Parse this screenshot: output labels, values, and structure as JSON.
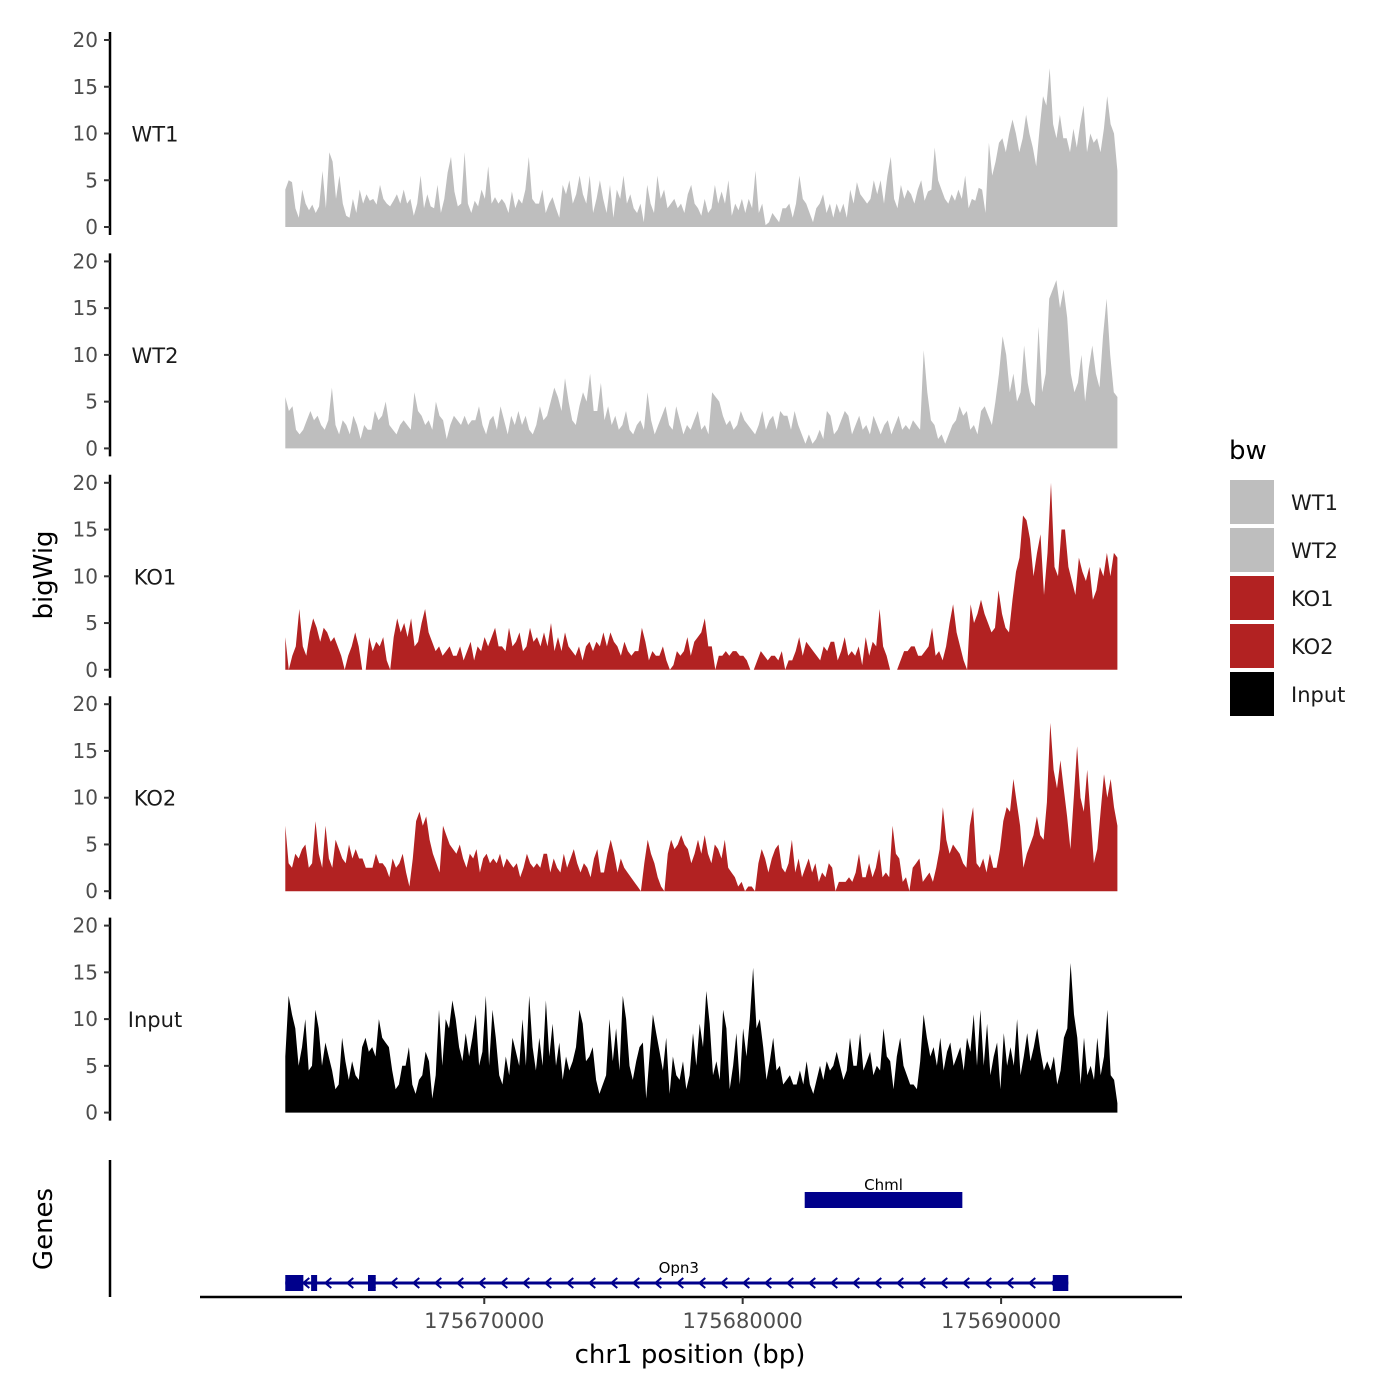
{
  "chart_data": {
    "type": "area",
    "ylabel": "bigWig",
    "xlabel": "chr1 position (bp)",
    "xlim": [
      175659000,
      175697000
    ],
    "ylim": [
      0,
      20
    ],
    "y_ticks": [
      0,
      5,
      10,
      15,
      20
    ],
    "x_ticks": [
      175670000,
      175680000,
      175690000
    ],
    "x_tick_labels": [
      "175670000",
      "175680000",
      "175690000"
    ],
    "track_range": [
      175662300,
      175694500
    ],
    "legend": {
      "title": "bw",
      "items": [
        {
          "label": "WT1",
          "color": "#bebebe"
        },
        {
          "label": "WT2",
          "color": "#bebebe"
        },
        {
          "label": "KO1",
          "color": "#b22222"
        },
        {
          "label": "KO2",
          "color": "#b22222"
        },
        {
          "label": "Input",
          "color": "#000000"
        }
      ]
    },
    "series": [
      {
        "name": "WT1",
        "color": "#bebebe",
        "values": [
          4,
          5,
          4.8,
          2,
          1,
          4,
          2.5,
          1.8,
          2.4,
          1.5,
          2.2,
          6,
          2,
          8,
          7,
          3,
          5.5,
          2.5,
          1.2,
          1,
          3,
          1.5,
          4,
          2.5,
          3.5,
          2.8,
          3,
          2.4,
          4.5,
          3,
          2.5,
          2.2,
          2.8,
          3.5,
          2.5,
          4,
          2.5,
          3,
          1.2,
          2.5,
          5.5,
          2,
          3.5,
          2.2,
          2,
          4.5,
          1.5,
          3,
          5.8,
          7.5,
          3.8,
          2.2,
          2.5,
          8,
          2.5,
          1.5,
          2.8,
          2.2,
          4,
          3,
          6.5,
          2.5,
          3.2,
          2.5,
          3,
          2.5,
          1.5,
          3.8,
          2,
          3,
          2.5,
          4,
          7.5,
          3,
          2.5,
          2.5,
          4,
          1.5,
          2.5,
          3.2,
          2,
          1,
          4.5,
          3.5,
          5,
          2.5,
          3.5,
          5.5,
          3.5,
          2.5,
          5.5,
          1.5,
          3,
          5,
          3,
          1.5,
          4.5,
          1,
          4,
          3,
          5.5,
          2.5,
          3.5,
          2,
          1.5,
          2.5,
          0.5,
          4.5,
          2.5,
          1.5,
          5.5,
          3,
          4,
          2,
          2.5,
          3,
          2,
          2.5,
          1.5,
          3.5,
          4.5,
          2.5,
          2,
          1.2,
          3,
          1.5,
          2,
          4.5,
          2.5,
          3.8,
          2.5,
          5,
          1.2,
          2.5,
          1.8,
          3,
          1.5,
          3,
          2,
          6,
          1.5,
          2.5,
          0.2,
          0.5,
          1.5,
          1,
          0.5,
          2,
          2,
          2.5,
          1,
          2.5,
          5.5,
          3,
          2.5,
          1.5,
          0.5,
          2,
          2.5,
          3.5,
          1.5,
          2.5,
          1,
          2.5,
          1.5,
          2.5,
          1,
          4,
          2.5,
          4.8,
          3.5,
          3,
          2.5,
          3,
          5,
          3.5,
          5,
          2.5,
          5.5,
          7.5,
          3,
          2,
          4.5,
          3,
          4,
          3.5,
          2.5,
          4,
          5,
          2.8,
          3.8,
          4,
          8.5,
          5,
          4,
          3,
          2.5,
          3.5,
          2.8,
          4,
          3,
          5.5,
          2,
          3,
          2.8,
          4.2,
          4,
          1.5,
          9,
          5.5,
          7,
          9,
          9.5,
          8,
          10,
          11.5,
          10,
          8,
          9.5,
          12,
          10,
          8.5,
          6.5,
          10.5,
          14,
          13,
          17,
          11,
          9.5,
          12,
          9.5,
          9.5,
          8,
          10.5,
          8.5,
          11,
          13,
          8,
          10,
          9,
          9.5,
          8,
          10.5,
          14,
          11,
          10,
          6
        ]
      },
      {
        "name": "WT2",
        "color": "#bebebe",
        "values": [
          5.5,
          4,
          4.5,
          2,
          1.5,
          2,
          3,
          4,
          3,
          3.5,
          2.5,
          2,
          3,
          6.5,
          2.5,
          1.5,
          3,
          2.5,
          1.5,
          3.5,
          2.5,
          1,
          2.5,
          2,
          2,
          4,
          3,
          3.5,
          5,
          2.5,
          2,
          1.5,
          2.5,
          3,
          2.5,
          2,
          6,
          4,
          3.5,
          2.5,
          3,
          2,
          5,
          3.5,
          3,
          1,
          2.5,
          3.5,
          3,
          2.5,
          3.5,
          2.5,
          3,
          3,
          4.5,
          2.5,
          1.5,
          3,
          3.5,
          2,
          4.5,
          3,
          1.5,
          3.5,
          2.5,
          4,
          2.5,
          3.5,
          2,
          1.5,
          2.5,
          4.5,
          3,
          3.5,
          5,
          6.5,
          5.5,
          4,
          7.5,
          5,
          3,
          2.5,
          4.5,
          6,
          5,
          8,
          4,
          4,
          7,
          3,
          4.5,
          2.5,
          3.5,
          2,
          2.5,
          4,
          2,
          1.5,
          2.5,
          3,
          2,
          6,
          3,
          1.5,
          2.5,
          3.5,
          4.5,
          2.5,
          2,
          4.5,
          3,
          1.5,
          2.5,
          2,
          3,
          4,
          2,
          2.5,
          1.5,
          6,
          5.5,
          5,
          3.5,
          2.5,
          3,
          2,
          2.5,
          4,
          3,
          2.5,
          2,
          1.5,
          2.5,
          4,
          2,
          3,
          3.5,
          2,
          4,
          3.5,
          3.5,
          2,
          4,
          2.5,
          1.5,
          0.5,
          1.5,
          0.5,
          1,
          2,
          1,
          4,
          3.5,
          1.5,
          2,
          3,
          4,
          3.5,
          1.5,
          2.5,
          3.5,
          2,
          2.5,
          1.5,
          3.5,
          2.5,
          1.5,
          2.5,
          3,
          1.5,
          2.5,
          3.5,
          2,
          2.5,
          2,
          3,
          2.5,
          2,
          10.5,
          6,
          3,
          2.5,
          1,
          1.5,
          0.5,
          1.5,
          2.5,
          3,
          4.5,
          3.5,
          4,
          2,
          2.5,
          1.5,
          4,
          4.5,
          3.5,
          2.5,
          5,
          8,
          12,
          10,
          6,
          8,
          5,
          6,
          11,
          7,
          5,
          4.5,
          13,
          6,
          8,
          16,
          17,
          18,
          15,
          17,
          14,
          8,
          6,
          7,
          10,
          5,
          8.5,
          11,
          8,
          6.5,
          12,
          16,
          10,
          6,
          5.5
        ]
      },
      {
        "name": "KO1",
        "color": "#b22222",
        "values": [
          3.5,
          0,
          1.5,
          2.5,
          6.5,
          2.5,
          1.5,
          4,
          5.5,
          4.5,
          3,
          4.5,
          4,
          3,
          3.5,
          2.5,
          1.5,
          0,
          1.5,
          2.5,
          4,
          2.5,
          0,
          0,
          3.5,
          2,
          3,
          2.5,
          3.5,
          1,
          0,
          3.5,
          5.5,
          4,
          5,
          3.5,
          5.5,
          2.5,
          3,
          5,
          6.5,
          4,
          3,
          2,
          2.5,
          1.5,
          2,
          2.5,
          1.5,
          1.5,
          2.5,
          1,
          2,
          3,
          1,
          2.5,
          2,
          3.5,
          2.5,
          3.5,
          4.5,
          2.5,
          2.5,
          2,
          4.5,
          2.5,
          3,
          4,
          2,
          2.5,
          4.5,
          3,
          3.5,
          2.5,
          4,
          2.5,
          5,
          2,
          3.5,
          2,
          4,
          2.5,
          2,
          1.5,
          2.5,
          1,
          2.5,
          3,
          2,
          3,
          2.5,
          4,
          2.5,
          4,
          3,
          2.5,
          1.5,
          3,
          2,
          1.5,
          2,
          2,
          4.5,
          3,
          1,
          2,
          1.5,
          1.5,
          2.5,
          1,
          0,
          0.5,
          2,
          1.5,
          2,
          3.5,
          1.5,
          3,
          3.5,
          4,
          5.5,
          2.5,
          2.5,
          0,
          1.5,
          1.5,
          2,
          1.5,
          2,
          2,
          1.5,
          1.5,
          1,
          0,
          0,
          1,
          2,
          1.5,
          1,
          1.5,
          1.5,
          1,
          2,
          0,
          1,
          1,
          2,
          3.5,
          1.5,
          3,
          2.5,
          2,
          1.5,
          1,
          2.5,
          2,
          3,
          3,
          1,
          2,
          3.5,
          1.5,
          2,
          1.5,
          2.5,
          0.5,
          3.5,
          1.5,
          3,
          2.5,
          6.5,
          2.5,
          1.5,
          0,
          0,
          0,
          1,
          2,
          2,
          2.5,
          2.5,
          1.5,
          1.5,
          2,
          2.5,
          4.5,
          1.5,
          2,
          1,
          2.5,
          5,
          7,
          4,
          2.5,
          1,
          0,
          7,
          5,
          6,
          7.5,
          6,
          5,
          4,
          4.5,
          8.5,
          6,
          4.5,
          4,
          7.5,
          10.5,
          12,
          16.5,
          16,
          14,
          10,
          12.5,
          14.5,
          8,
          12.5,
          20,
          11,
          10,
          15,
          15,
          11,
          9.5,
          8,
          12,
          10.5,
          9.5,
          11,
          7.5,
          8.5,
          11,
          10,
          12.5,
          10,
          12.5,
          12
        ]
      },
      {
        "name": "KO2",
        "color": "#b22222",
        "values": [
          7,
          3,
          2.5,
          4,
          3.5,
          4.5,
          5,
          2.5,
          3,
          7.5,
          4,
          2.5,
          7,
          3.5,
          2.5,
          5.5,
          4.5,
          3.5,
          3,
          5,
          3.5,
          4.5,
          3.5,
          3.5,
          2.5,
          2.5,
          2.5,
          4,
          3,
          3,
          2.5,
          1.5,
          3.5,
          2.5,
          3,
          4,
          2,
          0.5,
          3.5,
          7.5,
          8.5,
          7,
          8,
          5.5,
          4,
          3,
          2,
          7,
          6,
          5,
          4.5,
          4,
          5,
          3.5,
          2.5,
          4,
          3.5,
          4.5,
          2,
          3.5,
          4,
          3,
          3.5,
          3,
          4,
          2.5,
          3.5,
          3,
          2.5,
          3,
          1.5,
          2.5,
          4,
          3,
          2.5,
          3,
          2.5,
          4,
          4,
          2,
          3.5,
          2.5,
          2,
          4,
          2.5,
          3.5,
          4.5,
          3,
          2,
          3,
          2.5,
          1.5,
          3.5,
          4.5,
          2,
          2,
          4,
          5.5,
          4,
          2,
          3.5,
          2.5,
          2,
          1.5,
          1,
          0.5,
          0,
          3,
          5.5,
          4,
          3,
          1.5,
          0.5,
          0,
          4,
          5.5,
          4.5,
          5,
          6,
          5,
          4.5,
          3,
          4,
          5.5,
          4,
          6,
          4,
          3,
          5,
          4.5,
          3.5,
          5.5,
          2.5,
          2,
          1.5,
          0.5,
          1,
          0,
          0.5,
          0.5,
          0,
          3,
          4.5,
          3.5,
          2,
          3.5,
          4.5,
          5,
          2.5,
          2,
          3,
          5.5,
          2,
          3.5,
          1.5,
          2.5,
          3.5,
          2,
          3,
          1,
          2,
          1.5,
          3,
          2.5,
          0,
          1,
          1,
          1,
          1.5,
          1,
          2,
          4,
          1.5,
          1.5,
          3,
          1.5,
          2.5,
          4.5,
          1.5,
          2,
          1.5,
          7,
          4,
          3.5,
          1,
          1.5,
          0,
          2.5,
          3,
          3.5,
          1,
          1.5,
          2,
          1,
          2.5,
          4.5,
          9,
          5.5,
          4,
          5,
          4.5,
          4,
          3,
          2.5,
          7,
          9,
          3,
          2.5,
          3.5,
          2,
          4,
          2.5,
          2.5,
          4.5,
          7.5,
          9,
          8.5,
          12,
          9.5,
          7,
          2.5,
          4,
          5,
          6,
          8,
          6,
          5.5,
          9.5,
          18,
          13,
          11,
          14,
          11,
          8,
          4.5,
          10,
          15.5,
          10,
          8.5,
          13,
          8,
          3,
          4.5,
          8.5,
          12.5,
          10,
          12,
          9,
          7
        ]
      },
      {
        "name": "Input",
        "color": "#000000",
        "values": [
          6,
          12.5,
          10.5,
          9,
          5,
          7,
          10,
          4.5,
          5,
          11,
          9,
          5,
          7.5,
          6,
          4.5,
          2.5,
          3,
          8,
          5.5,
          3.5,
          5.5,
          4,
          3.5,
          7,
          8,
          6.5,
          7,
          6,
          10,
          8,
          7.5,
          7,
          4.5,
          2.5,
          3,
          5,
          5,
          7,
          3,
          2,
          3.5,
          4,
          6.5,
          5.5,
          1.5,
          4,
          11,
          5,
          10,
          9,
          12,
          10,
          7,
          5.5,
          8.5,
          6,
          8,
          10.5,
          5,
          6.5,
          12.5,
          5,
          11,
          8,
          4,
          3,
          6,
          4,
          8,
          6.5,
          5,
          10,
          5,
          12.5,
          7,
          4.5,
          8,
          5,
          12,
          6,
          9.5,
          5,
          7.5,
          3.5,
          6,
          4.5,
          5.5,
          7,
          11,
          9.5,
          5.5,
          6,
          7,
          3.5,
          2,
          3,
          4,
          10,
          5.5,
          9,
          4.5,
          12.5,
          10,
          5,
          3.5,
          5.5,
          7,
          7.5,
          1.5,
          6,
          10.5,
          8.5,
          6.5,
          4.5,
          8,
          2,
          6,
          4,
          3.5,
          5.5,
          2.5,
          4,
          8.5,
          5,
          9.5,
          7,
          13,
          9.5,
          4,
          5.5,
          3.5,
          11,
          9,
          2.5,
          5,
          8.5,
          3,
          9,
          6,
          10,
          15.5,
          9,
          10,
          7,
          3.5,
          5.5,
          8,
          4.5,
          5,
          3,
          3.5,
          4,
          3,
          3,
          4.5,
          3,
          5.5,
          3,
          2,
          3.5,
          5,
          3.5,
          5.5,
          4.5,
          5,
          6.5,
          5,
          3.5,
          4.5,
          8,
          5,
          5,
          8.5,
          4.5,
          5.5,
          6.5,
          4,
          5,
          4.5,
          9,
          6,
          5.5,
          2.5,
          6,
          8,
          5,
          4,
          3,
          3,
          2.5,
          5.5,
          10.5,
          8,
          6,
          7,
          5,
          8,
          4.5,
          6.5,
          7.5,
          5,
          6,
          7,
          4.5,
          8,
          6.5,
          10.5,
          5,
          11,
          5,
          9.5,
          4,
          6,
          7.5,
          2.5,
          8.5,
          5,
          7,
          5,
          10,
          4,
          6,
          8.5,
          5.5,
          7,
          9,
          6.5,
          4.5,
          5.5,
          4.5,
          6,
          3,
          4.5,
          8,
          9,
          16,
          10.5,
          8,
          3,
          8,
          4,
          5,
          3.5,
          8,
          4,
          6,
          11,
          4,
          3.5,
          1
        ]
      }
    ],
    "genes_track": {
      "ylabel": "Genes",
      "genes": [
        {
          "name": "Chml",
          "start": 175682400,
          "end": 175688500,
          "strand": "+"
        },
        {
          "name": "Opn3",
          "start": 175662300,
          "end": 175692600,
          "strand": "-",
          "exons": [
            [
              175662300,
              175663000
            ],
            [
              175663300,
              175663500
            ],
            [
              175665500,
              175665800
            ],
            [
              175692000,
              175692600
            ]
          ]
        }
      ]
    }
  }
}
